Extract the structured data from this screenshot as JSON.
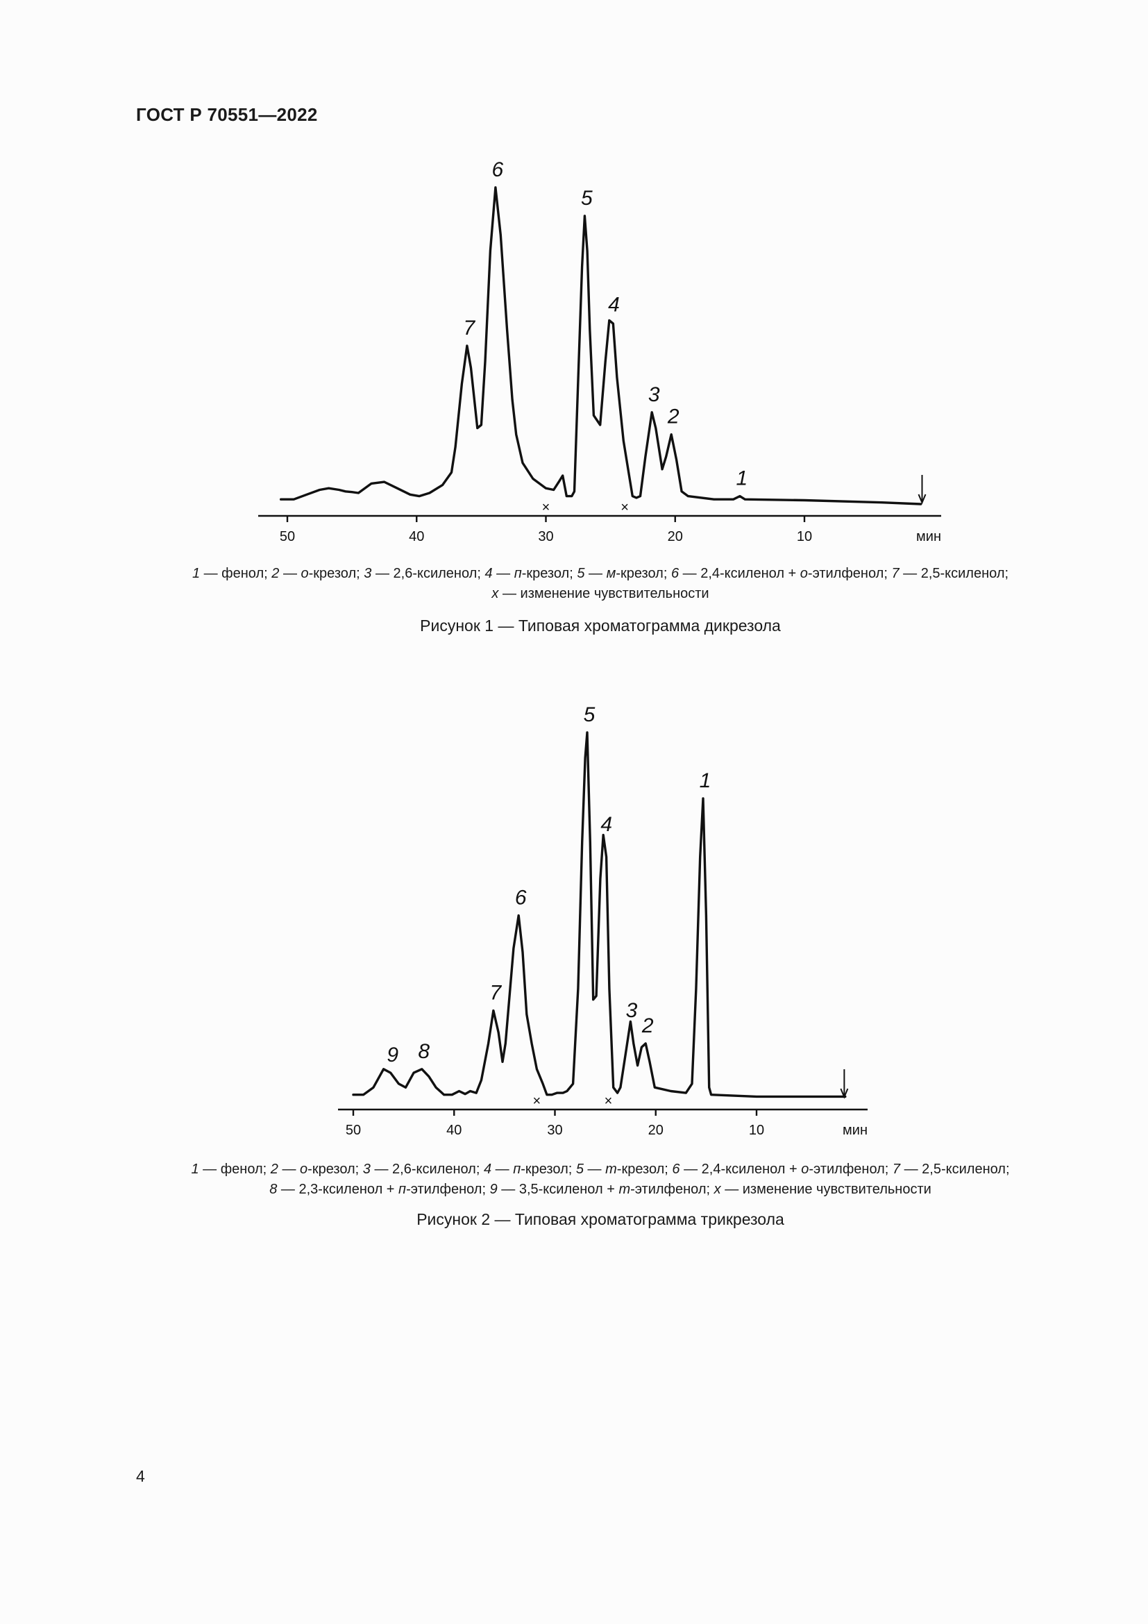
{
  "header": {
    "standard": "ГОСТ Р 70551—2022"
  },
  "figures": [
    {
      "caption_lines": [
        [
          {
            "t": "1",
            "i": true
          },
          {
            "t": " — фенол; "
          },
          {
            "t": "2",
            "i": true
          },
          {
            "t": " — "
          },
          {
            "t": "о",
            "i": true
          },
          {
            "t": "-крезол; "
          },
          {
            "t": "3",
            "i": true
          },
          {
            "t": " — 2,6-ксиленол; "
          },
          {
            "t": "4",
            "i": true
          },
          {
            "t": " — "
          },
          {
            "t": "п",
            "i": true
          },
          {
            "t": "-крезол; "
          },
          {
            "t": "5",
            "i": true
          },
          {
            "t": " — "
          },
          {
            "t": "м",
            "i": true
          },
          {
            "t": "-крезол; "
          },
          {
            "t": "6",
            "i": true
          },
          {
            "t": " — 2,4-ксиленол + "
          },
          {
            "t": "о",
            "i": true
          },
          {
            "t": "-этилфенол; "
          },
          {
            "t": "7",
            "i": true
          },
          {
            "t": " — 2,5-ксиленол;"
          }
        ],
        [
          {
            "t": "x",
            "i": true
          },
          {
            "t": " — изменение чувствительности"
          }
        ]
      ],
      "title": "Рисунок 1 — Типовая хроматограмма дикрезола"
    },
    {
      "caption_lines": [
        [
          {
            "t": "1",
            "i": true
          },
          {
            "t": " — фенол; "
          },
          {
            "t": "2",
            "i": true
          },
          {
            "t": " — "
          },
          {
            "t": "о",
            "i": true
          },
          {
            "t": "-крезол; "
          },
          {
            "t": "3",
            "i": true
          },
          {
            "t": " — 2,6-ксиленол; "
          },
          {
            "t": "4",
            "i": true
          },
          {
            "t": " — "
          },
          {
            "t": "п",
            "i": true
          },
          {
            "t": "-крезол; "
          },
          {
            "t": "5",
            "i": true
          },
          {
            "t": " — "
          },
          {
            "t": "m",
            "i": true
          },
          {
            "t": "-крезол; "
          },
          {
            "t": "6",
            "i": true
          },
          {
            "t": " — 2,4-ксиленол + "
          },
          {
            "t": "о",
            "i": true
          },
          {
            "t": "-этилфенол; "
          },
          {
            "t": "7",
            "i": true
          },
          {
            "t": " — 2,5-ксиленол;"
          }
        ],
        [
          {
            "t": "8",
            "i": true
          },
          {
            "t": " — 2,3-ксиленол + "
          },
          {
            "t": "п",
            "i": true
          },
          {
            "t": "-этилфенол; "
          },
          {
            "t": "9",
            "i": true
          },
          {
            "t": " — 3,5-ксиленол + "
          },
          {
            "t": "m",
            "i": true
          },
          {
            "t": "-этилфенол; "
          },
          {
            "t": "x",
            "i": true
          },
          {
            "t": " — изменение чувствительности"
          }
        ]
      ],
      "title": "Рисунок 2 — Типовая хроматограмма трикрезола"
    }
  ],
  "page_number": "4",
  "chart_data": [
    {
      "type": "line",
      "x_unit": "мин",
      "x_ticks": [
        50,
        40,
        30,
        20,
        10
      ],
      "x_tick_labels": [
        "50",
        "40",
        "30",
        "20",
        "10"
      ],
      "xlim": [
        51,
        0
      ],
      "ylim": [
        0,
        100
      ],
      "x_reversed": true,
      "grid": false,
      "series": [
        {
          "points": [
            [
              50.5,
              1.5
            ],
            [
              49.5,
              1.5
            ],
            [
              48.5,
              3
            ],
            [
              47.5,
              4.5
            ],
            [
              46.8,
              5
            ],
            [
              46,
              4.5
            ],
            [
              45.5,
              4
            ],
            [
              45,
              3.8
            ],
            [
              44.5,
              3.5
            ],
            [
              43.5,
              6.5
            ],
            [
              42.5,
              7
            ],
            [
              41.5,
              5
            ],
            [
              40.5,
              3
            ],
            [
              39.8,
              2.5
            ],
            [
              39,
              3.5
            ],
            [
              38,
              6
            ],
            [
              37.3,
              10
            ],
            [
              37,
              18
            ],
            [
              36.5,
              38
            ],
            [
              36.1,
              50
            ],
            [
              35.8,
              43
            ],
            [
              35.3,
              24
            ],
            [
              35,
              25
            ],
            [
              34.7,
              45
            ],
            [
              34.3,
              80
            ],
            [
              33.9,
              100
            ],
            [
              33.5,
              85
            ],
            [
              33,
              55
            ],
            [
              32.6,
              33
            ],
            [
              32.3,
              22
            ],
            [
              31.8,
              13
            ],
            [
              31,
              8
            ],
            [
              30,
              5
            ],
            [
              29.4,
              4.5
            ],
            [
              29,
              7
            ],
            [
              28.7,
              9
            ],
            [
              28.4,
              2.5
            ],
            [
              28,
              2.5
            ],
            [
              27.8,
              4
            ],
            [
              27.5,
              40
            ],
            [
              27.2,
              75
            ],
            [
              27,
              91
            ],
            [
              26.8,
              80
            ],
            [
              26.6,
              55
            ],
            [
              26.3,
              28
            ],
            [
              25.8,
              25
            ],
            [
              25.4,
              45
            ],
            [
              25.1,
              58
            ],
            [
              24.8,
              57
            ],
            [
              24.5,
              40
            ],
            [
              24,
              20
            ],
            [
              23.6,
              10
            ],
            [
              23.3,
              2.5
            ],
            [
              23,
              2
            ],
            [
              22.7,
              2.5
            ],
            [
              22.3,
              15
            ],
            [
              21.8,
              29
            ],
            [
              21.5,
              24
            ],
            [
              21,
              11
            ],
            [
              20.7,
              15
            ],
            [
              20.3,
              22
            ],
            [
              19.9,
              14
            ],
            [
              19.5,
              4
            ],
            [
              19,
              2.5
            ],
            [
              17,
              1.5
            ],
            [
              15.5,
              1.5
            ],
            [
              15,
              2.5
            ],
            [
              14.6,
              1.5
            ],
            [
              10,
              1.2
            ],
            [
              4,
              0.5
            ],
            [
              1,
              0
            ]
          ]
        }
      ],
      "peak_labels": [
        {
          "label": "1",
          "x": 15
        },
        {
          "label": "2",
          "x": 20.3
        },
        {
          "label": "3",
          "x": 21.8
        },
        {
          "label": "4",
          "x": 24.9
        },
        {
          "label": "5",
          "x": 27
        },
        {
          "label": "6",
          "x": 33.9
        },
        {
          "label": "7",
          "x": 36.1
        }
      ],
      "sensitivity_marks": [
        {
          "label": "×",
          "x": 30
        },
        {
          "label": "×",
          "x": 23.9
        }
      ],
      "injection_arrow_x": 0.9
    },
    {
      "type": "line",
      "x_unit": "мин",
      "x_ticks": [
        50,
        40,
        30,
        20,
        10
      ],
      "x_tick_labels": [
        "50",
        "40",
        "30",
        "20",
        "10"
      ],
      "xlim": [
        51,
        0
      ],
      "ylim": [
        0,
        100
      ],
      "x_reversed": true,
      "grid": false,
      "series": [
        {
          "points": [
            [
              50,
              1
            ],
            [
              49,
              1
            ],
            [
              48,
              3
            ],
            [
              47,
              8
            ],
            [
              46.3,
              7
            ],
            [
              45.5,
              4
            ],
            [
              44.8,
              3
            ],
            [
              44,
              7
            ],
            [
              43.2,
              8
            ],
            [
              42.5,
              6
            ],
            [
              41.8,
              3
            ],
            [
              41,
              1
            ],
            [
              40.2,
              1
            ],
            [
              39.5,
              2
            ],
            [
              38.9,
              1.2
            ],
            [
              38.4,
              2
            ],
            [
              37.8,
              1.5
            ],
            [
              37.3,
              5
            ],
            [
              36.6,
              15
            ],
            [
              36.1,
              24
            ],
            [
              35.6,
              18
            ],
            [
              35.2,
              10
            ],
            [
              34.9,
              15
            ],
            [
              34.5,
              28
            ],
            [
              34.1,
              41
            ],
            [
              33.6,
              50
            ],
            [
              33.2,
              40
            ],
            [
              32.8,
              23
            ],
            [
              32.3,
              15
            ],
            [
              31.8,
              8
            ],
            [
              31.2,
              4
            ],
            [
              30.8,
              1
            ],
            [
              30.3,
              1
            ],
            [
              29.8,
              1.5
            ],
            [
              29.2,
              1.5
            ],
            [
              28.8,
              2
            ],
            [
              28.2,
              4
            ],
            [
              27.7,
              30
            ],
            [
              27.3,
              70
            ],
            [
              27,
              93
            ],
            [
              26.8,
              100
            ],
            [
              26.5,
              70
            ],
            [
              26.2,
              27
            ],
            [
              25.9,
              28
            ],
            [
              25.5,
              60
            ],
            [
              25.2,
              72
            ],
            [
              24.9,
              66
            ],
            [
              24.6,
              30
            ],
            [
              24.2,
              3
            ],
            [
              23.8,
              1.5
            ],
            [
              23.5,
              3
            ],
            [
              23,
              12
            ],
            [
              22.5,
              21
            ],
            [
              22.2,
              15
            ],
            [
              21.8,
              9
            ],
            [
              21.4,
              14
            ],
            [
              21,
              15
            ],
            [
              20.6,
              10
            ],
            [
              20.1,
              3
            ],
            [
              18.5,
              2
            ],
            [
              17,
              1.5
            ],
            [
              16.4,
              4
            ],
            [
              16,
              30
            ],
            [
              15.6,
              66
            ],
            [
              15.3,
              82
            ],
            [
              15,
              50
            ],
            [
              14.7,
              3
            ],
            [
              14.5,
              1
            ],
            [
              10,
              0.5
            ],
            [
              1.2,
              0.5
            ]
          ]
        }
      ],
      "peak_labels": [
        {
          "label": "1",
          "x": 15.3
        },
        {
          "label": "2",
          "x": 21
        },
        {
          "label": "3",
          "x": 22.6
        },
        {
          "label": "4",
          "x": 25.1
        },
        {
          "label": "5",
          "x": 26.8
        },
        {
          "label": "6",
          "x": 33.6
        },
        {
          "label": "7",
          "x": 36.1
        },
        {
          "label": "8",
          "x": 43.2
        },
        {
          "label": "9",
          "x": 46.3
        }
      ],
      "sensitivity_marks": [
        {
          "label": "×",
          "x": 31.8
        },
        {
          "label": "×",
          "x": 24.7
        }
      ],
      "injection_arrow_x": 1.3
    }
  ]
}
